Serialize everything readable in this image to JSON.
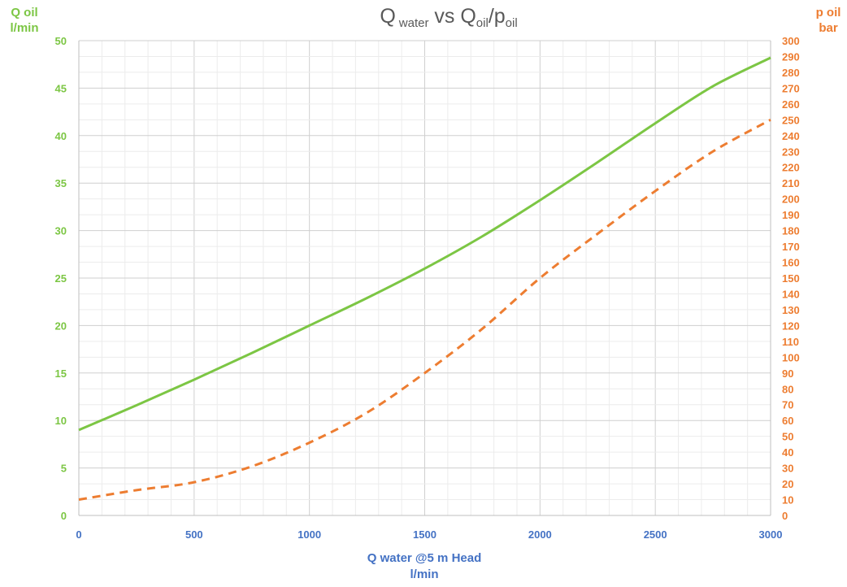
{
  "chart_data": {
    "type": "line",
    "title": {
      "main_prefix": "Q",
      "main_sub1": "water",
      "main_mid": " vs Q",
      "main_sub2": "oil",
      "main_slash": "/p",
      "main_sub3": "oil"
    },
    "y_left": {
      "label_line1": "Q oil",
      "label_line2": "l/min",
      "range": [
        0,
        50
      ],
      "ticks": [
        "0",
        "5",
        "10",
        "15",
        "20",
        "25",
        "30",
        "35",
        "40",
        "45",
        "50"
      ],
      "color": "#7cc644"
    },
    "y_right": {
      "label_line1": "p oil",
      "label_line2": "bar",
      "range": [
        0,
        300
      ],
      "ticks": [
        "0",
        "10",
        "20",
        "30",
        "40",
        "50",
        "60",
        "70",
        "80",
        "90",
        "100",
        "110",
        "120",
        "130",
        "140",
        "150",
        "160",
        "170",
        "180",
        "190",
        "200",
        "210",
        "220",
        "230",
        "240",
        "250",
        "260",
        "270",
        "280",
        "290",
        "300"
      ],
      "color": "#ed7d31"
    },
    "x_axis": {
      "label_line1": "Q water @5 m Head",
      "label_line2": "l/min",
      "range": [
        0,
        3000
      ],
      "ticks": [
        "0",
        "500",
        "1000",
        "1500",
        "2000",
        "2500",
        "3000"
      ],
      "color": "#4472c4"
    },
    "grid": true,
    "series": [
      {
        "axis": "left",
        "style": "solid",
        "color": "#7cc644",
        "x": [
          0,
          250,
          500,
          750,
          1000,
          1250,
          1500,
          1750,
          2000,
          2250,
          2500,
          2750,
          3000
        ],
        "y": [
          9,
          11.6,
          14.3,
          17.1,
          20,
          22.9,
          26,
          29.4,
          33.2,
          37.2,
          41.3,
          45.2,
          48.2
        ]
      },
      {
        "axis": "right",
        "style": "dashed",
        "color": "#ed7d31",
        "x": [
          0,
          250,
          500,
          750,
          1000,
          1250,
          1500,
          1750,
          2000,
          2250,
          2500,
          2750,
          3000
        ],
        "y": [
          10,
          16,
          21,
          31,
          46,
          65,
          90,
          118,
          150,
          178,
          205,
          230,
          250
        ]
      }
    ]
  }
}
